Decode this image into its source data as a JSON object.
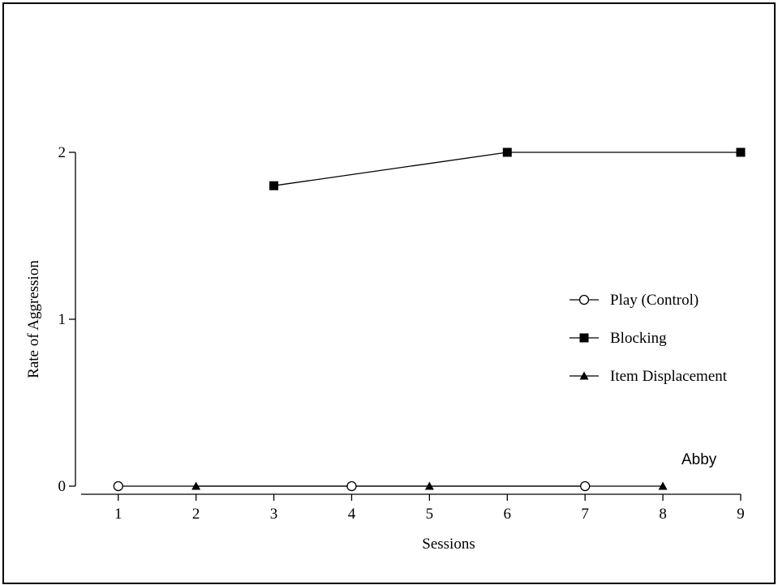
{
  "chart_data": {
    "type": "line",
    "title": "",
    "xlabel": "Sessions",
    "ylabel": "Rate of Aggression",
    "annotation": "Abby",
    "xlim": [
      0.45,
      9.0
    ],
    "ylim": [
      0,
      2
    ],
    "x_ticks": [
      1,
      2,
      3,
      4,
      5,
      6,
      7,
      8,
      9
    ],
    "y_ticks": [
      0,
      1,
      2
    ],
    "grid": false,
    "legend_position": "right",
    "series": [
      {
        "name": "Play (Control)",
        "marker": "circle-open",
        "color": "#000000",
        "points": [
          {
            "x": 1,
            "y": 0
          },
          {
            "x": 4,
            "y": 0
          },
          {
            "x": 7,
            "y": 0
          }
        ]
      },
      {
        "name": "Blocking",
        "marker": "square-filled",
        "color": "#000000",
        "points": [
          {
            "x": 3,
            "y": 1.8
          },
          {
            "x": 6,
            "y": 2
          },
          {
            "x": 9,
            "y": 2
          }
        ]
      },
      {
        "name": "Item Displacement",
        "marker": "triangle-filled",
        "color": "#000000",
        "points": [
          {
            "x": 2,
            "y": 0
          },
          {
            "x": 5,
            "y": 0
          },
          {
            "x": 8,
            "y": 0
          }
        ]
      }
    ]
  }
}
